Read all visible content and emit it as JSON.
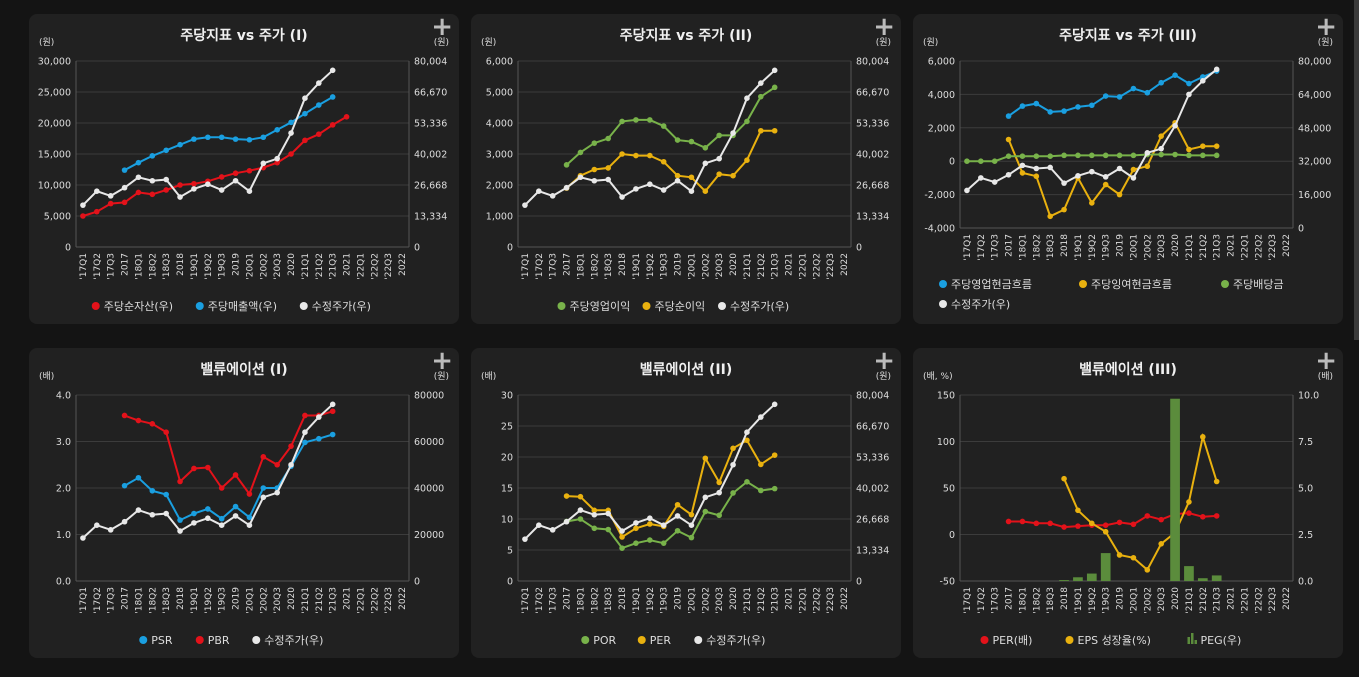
{
  "quarters": [
    "'17Q1",
    "'17Q2",
    "'17Q3",
    "2017",
    "'18Q1",
    "'18Q2",
    "'18Q3",
    "2018",
    "'19Q1",
    "'19Q2",
    "'19Q3",
    "2019",
    "'20Q1",
    "'20Q2",
    "'20Q3",
    "2020",
    "'21Q1",
    "'21Q2",
    "'21Q3",
    "2021",
    "'22Q1",
    "'22Q2",
    "'22Q3",
    "2022"
  ],
  "colors": {
    "red": "#e3121a",
    "blue": "#1a9fe0",
    "white": "#e8e8e8",
    "green": "#78b24a",
    "yellow": "#e9b10f",
    "bar": "#5b8c3c"
  },
  "panels": [
    {
      "title": "주당지표 vs 주가 (I)",
      "left_unit": "(원)",
      "right_unit": "(원)",
      "left_ticks": [
        "30,000",
        "25,000",
        "20,000",
        "15,000",
        "10,000",
        "5,000",
        "0"
      ],
      "right_ticks": [
        "80,004",
        "66,670",
        "53,336",
        "40,002",
        "26,668",
        "13,334",
        "0"
      ],
      "legend": [
        {
          "label": "주당순자산(우)",
          "color": "#e3121a",
          "shape": "dot"
        },
        {
          "label": "주당매출액(우)",
          "color": "#1a9fe0",
          "shape": "dot"
        },
        {
          "label": "수정주가(우)",
          "color": "#e8e8e8",
          "shape": "dot"
        }
      ]
    },
    {
      "title": "주당지표 vs 주가 (II)",
      "left_unit": "(원)",
      "right_unit": "(원)",
      "left_ticks": [
        "6,000",
        "5,000",
        "4,000",
        "3,000",
        "2,000",
        "1,000",
        "0"
      ],
      "right_ticks": [
        "80,004",
        "66,670",
        "53,336",
        "40,002",
        "26,668",
        "13,334",
        "0"
      ],
      "legend": [
        {
          "label": "주당영업이익",
          "color": "#78b24a",
          "shape": "dot"
        },
        {
          "label": "주당순이익",
          "color": "#e9b10f",
          "shape": "dot"
        },
        {
          "label": "수정주가(우)",
          "color": "#e8e8e8",
          "shape": "dot"
        }
      ]
    },
    {
      "title": "주당지표 vs 주가 (III)",
      "left_unit": "(원)",
      "right_unit": "(원)",
      "left_ticks": [
        "6,000",
        "4,000",
        "2,000",
        "0",
        "-2,000",
        "-4,000"
      ],
      "right_ticks": [
        "80,000",
        "64,000",
        "48,000",
        "32,000",
        "16,000",
        "0"
      ],
      "legend": [
        {
          "label": "주당영업현금흐름",
          "color": "#1a9fe0",
          "shape": "dot"
        },
        {
          "label": "주당잉여현금흐름",
          "color": "#e9b10f",
          "shape": "dot"
        },
        {
          "label": "주당배당금",
          "color": "#78b24a",
          "shape": "dot"
        },
        {
          "label": "수정주가(우)",
          "color": "#e8e8e8",
          "shape": "dot"
        }
      ]
    },
    {
      "title": "밸류에이션 (I)",
      "left_unit": "(배)",
      "right_unit": "(원)",
      "left_ticks": [
        "4.0",
        "3.0",
        "2.0",
        "1.0",
        "0.0"
      ],
      "right_ticks": [
        "80000",
        "60000",
        "40000",
        "20000",
        "0"
      ],
      "legend": [
        {
          "label": "PSR",
          "color": "#1a9fe0",
          "shape": "dot"
        },
        {
          "label": "PBR",
          "color": "#e3121a",
          "shape": "dot"
        },
        {
          "label": "수정주가(우)",
          "color": "#e8e8e8",
          "shape": "dot"
        }
      ]
    },
    {
      "title": "밸류에이션 (II)",
      "left_unit": "(배)",
      "right_unit": "(원)",
      "left_ticks": [
        "30",
        "25",
        "20",
        "15",
        "10",
        "5",
        "0"
      ],
      "right_ticks": [
        "80,004",
        "66,670",
        "53,336",
        "40,002",
        "26,668",
        "13,334",
        "0"
      ],
      "legend": [
        {
          "label": "POR",
          "color": "#78b24a",
          "shape": "dot"
        },
        {
          "label": "PER",
          "color": "#e9b10f",
          "shape": "dot"
        },
        {
          "label": "수정주가(우)",
          "color": "#e8e8e8",
          "shape": "dot"
        }
      ]
    },
    {
      "title": "밸류에이션 (III)",
      "left_unit": "(배, %)",
      "right_unit": "(배)",
      "left_ticks": [
        "150",
        "100",
        "50",
        "0",
        "-50"
      ],
      "right_ticks": [
        "10.0",
        "7.5",
        "5.0",
        "2.5",
        "0.0"
      ],
      "legend": [
        {
          "label": "PER(배)",
          "color": "#e3121a",
          "shape": "dot"
        },
        {
          "label": "EPS 성장율(%)",
          "color": "#e9b10f",
          "shape": "dot"
        },
        {
          "label": "PEG(우)",
          "color": "#5b8c3c",
          "shape": "bars"
        }
      ]
    }
  ],
  "chart_data": [
    {
      "type": "line",
      "title": "주당지표 vs 주가 (I)",
      "x": "quarters",
      "ylim": [
        0,
        30000
      ],
      "y2lim": [
        0,
        80004
      ],
      "series": [
        {
          "name": "주당순자산(우)",
          "axis": "left",
          "color": "#e3121a",
          "values": [
            5000,
            5700,
            7000,
            7200,
            8800,
            8500,
            9200,
            10000,
            10200,
            10600,
            11300,
            11900,
            12300,
            12800,
            13600,
            15000,
            17200,
            18200,
            19700,
            21000,
            null,
            null,
            null,
            null
          ]
        },
        {
          "name": "주당매출액(우)",
          "axis": "left",
          "color": "#1a9fe0",
          "values": [
            null,
            null,
            null,
            12400,
            13600,
            14700,
            15600,
            16500,
            17400,
            17700,
            17700,
            17400,
            17300,
            17700,
            18900,
            20100,
            21500,
            22900,
            24200,
            null,
            null,
            null,
            null,
            null
          ]
        },
        {
          "name": "수정주가(우)",
          "axis": "right",
          "color": "#e8e8e8",
          "values": [
            18000,
            24000,
            22000,
            25500,
            30000,
            28500,
            29000,
            21500,
            25000,
            27000,
            24500,
            28500,
            24000,
            36000,
            38000,
            49000,
            64000,
            70500,
            76000,
            null,
            null,
            null,
            null,
            null
          ]
        }
      ]
    },
    {
      "type": "line",
      "title": "주당지표 vs 주가 (II)",
      "x": "quarters",
      "ylim": [
        0,
        6000
      ],
      "y2lim": [
        0,
        80004
      ],
      "series": [
        {
          "name": "주당영업이익",
          "axis": "left",
          "color": "#78b24a",
          "values": [
            null,
            null,
            null,
            2650,
            3050,
            3350,
            3500,
            4050,
            4100,
            4100,
            3900,
            3450,
            3400,
            3200,
            3600,
            3600,
            4050,
            4850,
            5150,
            null,
            null,
            null,
            null,
            null
          ]
        },
        {
          "name": "주당순이익",
          "axis": "left",
          "color": "#e9b10f",
          "values": [
            null,
            null,
            null,
            1900,
            2300,
            2500,
            2550,
            3000,
            2950,
            2950,
            2750,
            2300,
            2250,
            1800,
            2350,
            2300,
            2800,
            3750,
            3750,
            null,
            null,
            null,
            null,
            null
          ]
        },
        {
          "name": "수정주가(우)",
          "axis": "right",
          "color": "#e8e8e8",
          "values": [
            18000,
            24000,
            22000,
            25500,
            30000,
            28500,
            29000,
            21500,
            25000,
            27000,
            24500,
            28500,
            24000,
            36000,
            38000,
            49000,
            64000,
            70500,
            76000,
            null,
            null,
            null,
            null,
            null
          ]
        }
      ]
    },
    {
      "type": "line",
      "title": "주당지표 vs 주가 (III)",
      "x": "quarters",
      "ylim": [
        -4000,
        6000
      ],
      "y2lim": [
        0,
        80000
      ],
      "series": [
        {
          "name": "주당영업현금흐름",
          "axis": "left",
          "color": "#1a9fe0",
          "values": [
            null,
            null,
            null,
            2700,
            3300,
            3450,
            2950,
            3000,
            3250,
            3350,
            3900,
            3850,
            4350,
            4100,
            4700,
            5150,
            4650,
            5050,
            5400,
            null,
            null,
            null,
            null,
            null
          ]
        },
        {
          "name": "주당잉여현금흐름",
          "axis": "left",
          "color": "#e9b10f",
          "values": [
            null,
            null,
            null,
            1300,
            -700,
            -900,
            -3300,
            -2900,
            -1000,
            -2500,
            -1400,
            -2000,
            -500,
            -300,
            1500,
            2300,
            700,
            900,
            900,
            null,
            null,
            null,
            null,
            null
          ]
        },
        {
          "name": "주당배당금",
          "axis": "left",
          "color": "#78b24a",
          "values": [
            0,
            0,
            0,
            300,
            300,
            300,
            300,
            350,
            350,
            350,
            350,
            350,
            350,
            400,
            400,
            400,
            350,
            350,
            350,
            null,
            null,
            null,
            null,
            null
          ]
        },
        {
          "name": "수정주가(우)",
          "axis": "right",
          "color": "#e8e8e8",
          "values": [
            18000,
            24000,
            22000,
            25500,
            30000,
            28500,
            29000,
            21500,
            25000,
            27000,
            24500,
            28500,
            24000,
            36000,
            38000,
            49000,
            64000,
            70500,
            76000,
            null,
            null,
            null,
            null,
            null
          ]
        }
      ]
    },
    {
      "type": "line",
      "title": "밸류에이션 (I)",
      "x": "quarters",
      "ylim": [
        0,
        4
      ],
      "y2lim": [
        0,
        80000
      ],
      "series": [
        {
          "name": "PSR",
          "axis": "left",
          "color": "#1a9fe0",
          "values": [
            null,
            null,
            null,
            2.05,
            2.22,
            1.94,
            1.86,
            1.31,
            1.45,
            1.55,
            1.34,
            1.6,
            1.37,
            2.0,
            2.0,
            2.47,
            2.98,
            3.06,
            3.15,
            null,
            null,
            null,
            null,
            null
          ]
        },
        {
          "name": "PBR",
          "axis": "left",
          "color": "#e3121a",
          "values": [
            null,
            null,
            null,
            3.56,
            3.45,
            3.38,
            3.2,
            2.14,
            2.42,
            2.44,
            2.0,
            2.28,
            1.87,
            2.67,
            2.5,
            2.9,
            3.56,
            3.56,
            3.65,
            null,
            null,
            null,
            null,
            null
          ]
        },
        {
          "name": "수정주가(우)",
          "axis": "right",
          "color": "#e8e8e8",
          "values": [
            18500,
            24000,
            22000,
            25500,
            30500,
            28500,
            29000,
            21500,
            25000,
            27000,
            24000,
            28000,
            24000,
            36000,
            38000,
            50000,
            64000,
            70500,
            76000,
            null,
            null,
            null,
            null,
            null
          ]
        }
      ]
    },
    {
      "type": "line",
      "title": "밸류에이션 (II)",
      "x": "quarters",
      "ylim": [
        0,
        30
      ],
      "y2lim": [
        0,
        80004
      ],
      "series": [
        {
          "name": "POR",
          "axis": "left",
          "color": "#78b24a",
          "values": [
            null,
            null,
            null,
            9.6,
            10.0,
            8.5,
            8.3,
            5.3,
            6.1,
            6.6,
            6.1,
            8.1,
            7.0,
            11.2,
            10.6,
            14.2,
            16.0,
            14.6,
            14.9,
            null,
            null,
            null,
            null,
            null
          ]
        },
        {
          "name": "PER",
          "axis": "left",
          "color": "#e9b10f",
          "values": [
            null,
            null,
            null,
            13.7,
            13.6,
            11.4,
            11.4,
            7.1,
            8.5,
            9.2,
            8.8,
            12.3,
            10.7,
            19.8,
            15.9,
            21.4,
            22.7,
            18.8,
            20.3,
            null,
            null,
            null,
            null,
            null
          ]
        },
        {
          "name": "수정주가(우)",
          "axis": "right",
          "color": "#e8e8e8",
          "values": [
            18000,
            24000,
            22000,
            25500,
            30500,
            28500,
            29000,
            21500,
            25000,
            27000,
            24000,
            28000,
            24000,
            36000,
            38000,
            50000,
            64000,
            70500,
            76000,
            null,
            null,
            null,
            null,
            null
          ]
        }
      ]
    },
    {
      "type": "line",
      "title": "밸류에이션 (III)",
      "x": "quarters",
      "ylim": [
        -50,
        150
      ],
      "y2lim": [
        0,
        10
      ],
      "series": [
        {
          "name": "PER(배)",
          "axis": "left",
          "color": "#e3121a",
          "values": [
            null,
            null,
            null,
            14,
            14,
            12,
            12,
            8,
            9,
            10,
            10,
            13,
            11,
            20,
            16,
            22,
            23,
            19,
            20,
            null,
            null,
            null,
            null,
            null
          ]
        },
        {
          "name": "EPS 성장율(%)",
          "axis": "left",
          "color": "#e9b10f",
          "values": [
            null,
            null,
            null,
            null,
            null,
            null,
            null,
            60,
            26,
            12,
            3,
            -22,
            -25,
            -38,
            -10,
            2,
            35,
            105,
            57,
            null,
            null,
            null,
            null,
            null
          ]
        },
        {
          "name": "PEG(우)",
          "axis": "right",
          "type": "bar",
          "color": "#5b8c3c",
          "values": [
            null,
            null,
            null,
            null,
            null,
            null,
            null,
            0.05,
            0.2,
            0.4,
            1.5,
            null,
            null,
            null,
            null,
            9.8,
            0.8,
            0.15,
            0.3,
            null,
            null,
            null,
            null,
            null
          ]
        }
      ]
    }
  ]
}
